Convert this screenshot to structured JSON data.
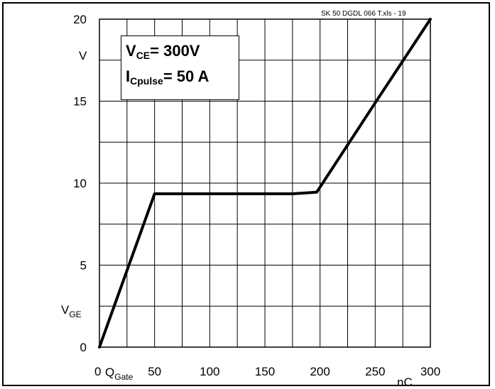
{
  "chart_data": {
    "type": "line",
    "file_label": "SK 50 DGDL 066 T.xls - 19",
    "xlim": [
      0,
      300
    ],
    "ylim": [
      0,
      20
    ],
    "x_ticks": [
      0,
      50,
      100,
      150,
      200,
      250,
      300
    ],
    "x_tick_labels": [
      "0",
      "50",
      "100",
      "150",
      "200",
      "250",
      "300"
    ],
    "y_ticks": [
      0,
      5,
      10,
      15,
      20
    ],
    "y_tick_labels": [
      "0",
      "5",
      "10",
      "15",
      "20"
    ],
    "grid": true,
    "x_minor_step": 25,
    "y_minor_step": 2.5,
    "xlabel": {
      "main": "Q",
      "sub": "Gate"
    },
    "x_unit": "nC",
    "ylabel": {
      "main": "V",
      "sub": "GE"
    },
    "y_unit": "V",
    "annotations": [
      {
        "main": "V",
        "sub": "CE",
        "text": "= 300V"
      },
      {
        "main": "I",
        "sub": "Cpulse",
        "text": "= 50 A"
      }
    ],
    "series": [
      {
        "x": [
          0,
          50,
          175,
          197,
          250,
          300
        ],
        "values": [
          0,
          9.35,
          9.35,
          9.45,
          14.9,
          20
        ]
      }
    ]
  }
}
